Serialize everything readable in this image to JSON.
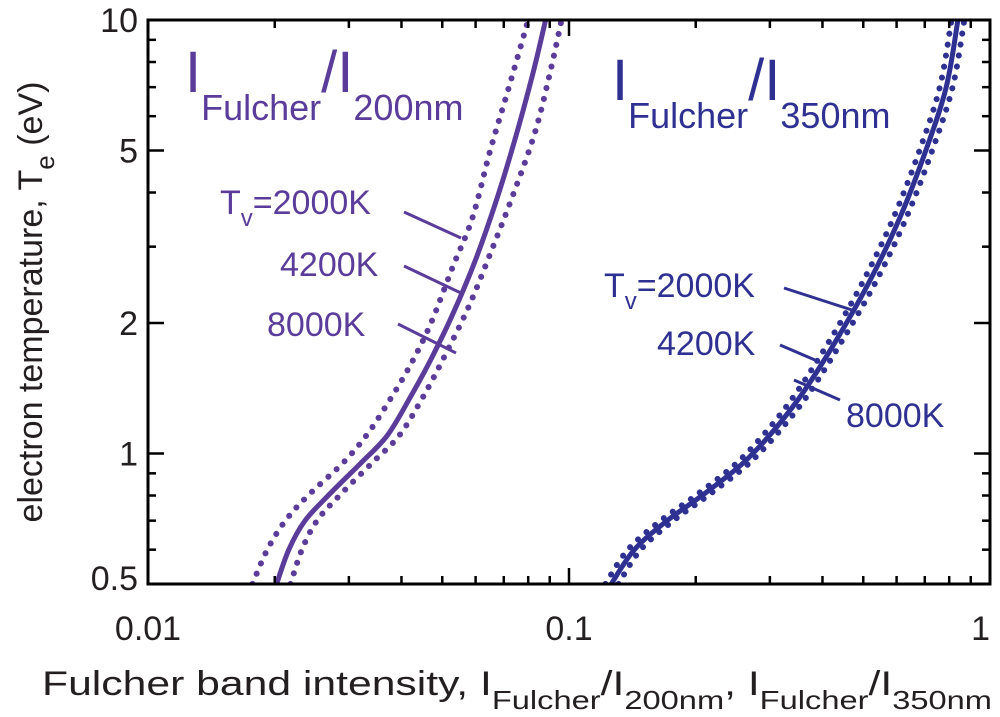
{
  "chart_data": {
    "type": "line",
    "x_scale": "log",
    "y_scale": "log",
    "xlim": [
      0.01,
      1
    ],
    "ylim": [
      0.5,
      10
    ],
    "grid": false,
    "legend": "none",
    "xlabel": {
      "main": "Fulcher band intensity, I",
      "sub1": "Fulcher",
      "mid1": "/I",
      "sub2": "200nm",
      "mid2": ", I",
      "sub3": "Fulcher",
      "mid3": "/I",
      "sub4": "350nm"
    },
    "ylabel": {
      "main": "electron temperature, T",
      "sub": "e",
      "unit": " (eV)"
    },
    "x_ticks": [
      {
        "value": 0.01,
        "label": "0.01"
      },
      {
        "value": 0.1,
        "label": "0.1"
      },
      {
        "value": 1,
        "label": "1"
      }
    ],
    "y_ticks": [
      {
        "value": 0.5,
        "label": "0.5"
      },
      {
        "value": 1,
        "label": "1"
      },
      {
        "value": 2,
        "label": "2"
      },
      {
        "value": 5,
        "label": "5"
      },
      {
        "value": 10,
        "label": "10"
      }
    ],
    "panel_labels": [
      {
        "i": "I",
        "sub1": "Fulcher",
        "slash": "/I",
        "sub2": "200nm",
        "color": "#5b3c9b"
      },
      {
        "i": "I",
        "sub1": "Fulcher",
        "slash": "/I",
        "sub2": "350nm",
        "color": "#2e3192"
      }
    ],
    "groups": [
      {
        "ratio": "I_Fulcher/I_200nm",
        "color": "#5b3c9b",
        "series": [
          {
            "Tv": "2000K",
            "style": "dotted",
            "points": [
              [
                0.0177,
                0.5
              ],
              [
                0.0192,
                0.6
              ],
              [
                0.0212,
                0.7
              ],
              [
                0.024,
                0.8
              ],
              [
                0.029,
                0.95
              ],
              [
                0.033,
                1.1
              ],
              [
                0.037,
                1.3
              ],
              [
                0.042,
                1.6
              ],
              [
                0.047,
                2.0
              ],
              [
                0.053,
                2.7
              ],
              [
                0.059,
                3.5
              ],
              [
                0.065,
                5.0
              ],
              [
                0.072,
                7.0
              ],
              [
                0.08,
                10
              ]
            ]
          },
          {
            "Tv": "4200K",
            "style": "solid",
            "points": [
              [
                0.0202,
                0.5
              ],
              [
                0.0216,
                0.6
              ],
              [
                0.0236,
                0.7
              ],
              [
                0.0268,
                0.8
              ],
              [
                0.032,
                0.95
              ],
              [
                0.037,
                1.1
              ],
              [
                0.042,
                1.35
              ],
              [
                0.047,
                1.65
              ],
              [
                0.053,
                2.1
              ],
              [
                0.06,
                2.8
              ],
              [
                0.067,
                3.8
              ],
              [
                0.074,
                5.2
              ],
              [
                0.082,
                7.5
              ],
              [
                0.088,
                10
              ]
            ]
          },
          {
            "Tv": "8000K",
            "style": "dotted",
            "points": [
              [
                0.0218,
                0.5
              ],
              [
                0.0232,
                0.6
              ],
              [
                0.0252,
                0.7
              ],
              [
                0.0285,
                0.8
              ],
              [
                0.034,
                0.95
              ],
              [
                0.0395,
                1.1
              ],
              [
                0.045,
                1.35
              ],
              [
                0.051,
                1.7
              ],
              [
                0.058,
                2.2
              ],
              [
                0.066,
                3.0
              ],
              [
                0.074,
                4.0
              ],
              [
                0.083,
                5.5
              ],
              [
                0.09,
                7.5
              ],
              [
                0.096,
                10
              ]
            ]
          }
        ],
        "annotations": [
          {
            "text": "T",
            "sub": "v",
            "rest": "=2000K"
          },
          {
            "text": "4200K"
          },
          {
            "text": "8000K"
          }
        ]
      },
      {
        "ratio": "I_Fulcher/I_350nm",
        "color": "#2e3192",
        "series": [
          {
            "Tv": "2000K",
            "style": "dotted",
            "points": [
              [
                0.122,
                0.5
              ],
              [
                0.138,
                0.6
              ],
              [
                0.165,
                0.7
              ],
              [
                0.2,
                0.8
              ],
              [
                0.25,
                0.95
              ],
              [
                0.3,
                1.15
              ],
              [
                0.35,
                1.4
              ],
              [
                0.42,
                1.85
              ],
              [
                0.5,
                2.5
              ],
              [
                0.59,
                3.5
              ],
              [
                0.68,
                5.0
              ],
              [
                0.76,
                7.0
              ],
              [
                0.81,
                10
              ]
            ]
          },
          {
            "Tv": "4200K",
            "style": "solid",
            "points": [
              [
                0.126,
                0.5
              ],
              [
                0.143,
                0.6
              ],
              [
                0.171,
                0.7
              ],
              [
                0.207,
                0.8
              ],
              [
                0.259,
                0.95
              ],
              [
                0.311,
                1.15
              ],
              [
                0.363,
                1.4
              ],
              [
                0.435,
                1.85
              ],
              [
                0.518,
                2.5
              ],
              [
                0.611,
                3.5
              ],
              [
                0.704,
                5.0
              ],
              [
                0.787,
                7.0
              ],
              [
                0.839,
                10
              ]
            ]
          },
          {
            "Tv": "8000K",
            "style": "dotted",
            "points": [
              [
                0.131,
                0.5
              ],
              [
                0.148,
                0.6
              ],
              [
                0.177,
                0.7
              ],
              [
                0.214,
                0.8
              ],
              [
                0.268,
                0.95
              ],
              [
                0.322,
                1.15
              ],
              [
                0.376,
                1.4
              ],
              [
                0.45,
                1.85
              ],
              [
                0.537,
                2.5
              ],
              [
                0.633,
                3.5
              ],
              [
                0.729,
                5.0
              ],
              [
                0.815,
                7.0
              ],
              [
                0.869,
                10
              ]
            ]
          }
        ],
        "annotations": [
          {
            "text": "T",
            "sub": "v",
            "rest": "=2000K"
          },
          {
            "text": "4200K"
          },
          {
            "text": "8000K"
          }
        ]
      }
    ]
  }
}
